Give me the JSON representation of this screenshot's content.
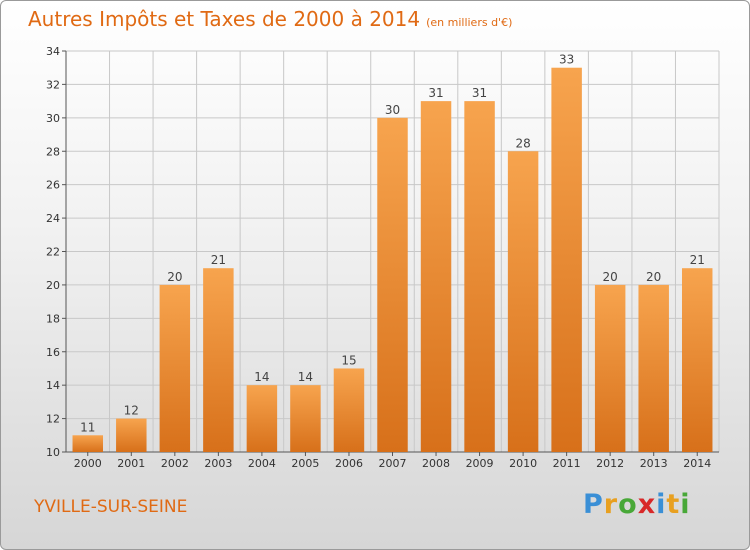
{
  "title": "Autres Impôts et Taxes de 2000 à 2014",
  "unit": "(en milliers d'€)",
  "city": "YVILLE-SUR-SEINE",
  "logo": {
    "letters": [
      "P",
      "r",
      "o",
      "x",
      "i",
      "t",
      "i"
    ],
    "colors": [
      "#3a8fd6",
      "#e8a020",
      "#48a838",
      "#d82828",
      "#3a8fd6",
      "#e8a020",
      "#48a838"
    ]
  },
  "colors": {
    "bar_light": "#f7a44e",
    "bar_dark": "#d7701a",
    "title": "#e06a14",
    "grid": "#c8c8c8"
  },
  "chart_data": {
    "type": "bar",
    "title": "Autres Impôts et Taxes de 2000 à 2014",
    "subtitle": "(en milliers d'€)",
    "xlabel": "",
    "ylabel": "",
    "categories": [
      "2000",
      "2001",
      "2002",
      "2003",
      "2004",
      "2005",
      "2006",
      "2007",
      "2008",
      "2009",
      "2010",
      "2011",
      "2012",
      "2013",
      "2014"
    ],
    "values": [
      11,
      12,
      20,
      21,
      14,
      14,
      15,
      30,
      31,
      31,
      28,
      33,
      20,
      20,
      21
    ],
    "ylim": [
      10,
      34
    ],
    "yticks": [
      10,
      12,
      14,
      16,
      18,
      20,
      22,
      24,
      26,
      28,
      30,
      32,
      34
    ],
    "grid": true,
    "data_labels": true
  }
}
